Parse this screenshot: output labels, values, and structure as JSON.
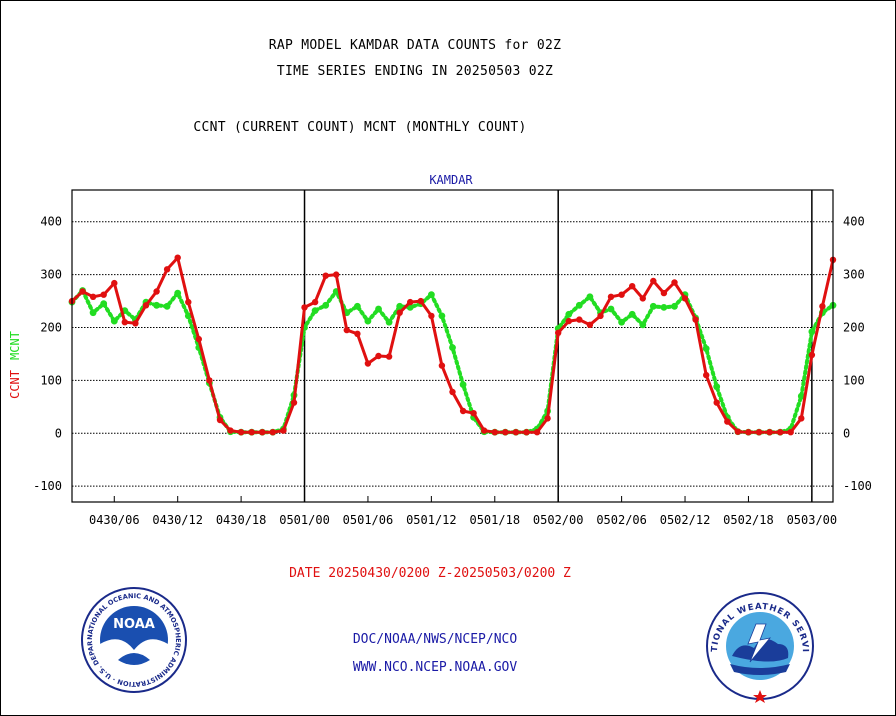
{
  "header": {
    "title_line1": "RAP MODEL KAMDAR DATA COUNTS for 02Z",
    "title_line2": "TIME SERIES ENDING IN 20250503 02Z",
    "subtitle": "CCNT (CURRENT COUNT) MCNT (MONTHLY COUNT)"
  },
  "footer": {
    "date_range": "DATE 20250430/0200 Z-20250503/0200 Z",
    "org_path": "DOC/NOAA/NWS/NCEP/NCO",
    "url": "WWW.NCO.NCEP.NOAA.GOV"
  },
  "logos": {
    "noaa_text": "NOAA",
    "noaa_ring": "NATIONAL OCEANIC AND ATMOSPHERIC ADMINISTRATION · U.S. DEPARTMENT OF COMMERCE ·",
    "nws_ring": "NATIONAL WEATHER SERVICE"
  },
  "colors": {
    "ccnt": "#e01010",
    "mcnt": "#22dd22",
    "title": "#000000",
    "blue_text": "#1a1aa6"
  },
  "chart_data": {
    "type": "line",
    "title": "KAMDAR",
    "ylabel_left": [
      "CCNT",
      "MCNT"
    ],
    "ylim": [
      -130,
      460
    ],
    "yticks": [
      -100,
      0,
      100,
      200,
      300,
      400
    ],
    "xlim": [
      0,
      72
    ],
    "x_unit": "hours after 20250430/0200 Z",
    "xticks": [
      {
        "x": 4,
        "label": "0430/06"
      },
      {
        "x": 10,
        "label": "0430/12"
      },
      {
        "x": 16,
        "label": "0430/18"
      },
      {
        "x": 22,
        "label": "0501/00"
      },
      {
        "x": 28,
        "label": "0501/06"
      },
      {
        "x": 34,
        "label": "0501/12"
      },
      {
        "x": 40,
        "label": "0501/18"
      },
      {
        "x": 46,
        "label": "0502/00"
      },
      {
        "x": 52,
        "label": "0502/06"
      },
      {
        "x": 58,
        "label": "0502/12"
      },
      {
        "x": 64,
        "label": "0502/18"
      },
      {
        "x": 70,
        "label": "0503/00"
      }
    ],
    "day_boundaries": [
      22,
      46,
      70
    ],
    "grid": true,
    "series": [
      {
        "name": "CCNT",
        "color": "#e01010",
        "values": [
          250,
          268,
          258,
          262,
          284,
          210,
          208,
          242,
          268,
          310,
          332,
          248,
          178,
          100,
          25,
          5,
          2,
          2,
          2,
          2,
          5,
          58,
          238,
          248,
          298,
          300,
          195,
          188,
          132,
          146,
          145,
          228,
          248,
          250,
          222,
          128,
          78,
          42,
          38,
          5,
          2,
          2,
          2,
          2,
          2,
          28,
          190,
          212,
          215,
          205,
          222,
          258,
          262,
          278,
          255,
          288,
          265,
          285,
          255,
          215,
          110,
          58,
          22,
          3,
          2,
          2,
          2,
          2,
          2,
          28,
          148,
          240,
          328
        ]
      },
      {
        "name": "MCNT",
        "color": "#22dd22",
        "values": [
          248,
          270,
          228,
          245,
          212,
          232,
          215,
          248,
          242,
          240,
          265,
          222,
          162,
          95,
          30,
          3,
          2,
          2,
          2,
          2,
          8,
          72,
          200,
          232,
          242,
          268,
          228,
          240,
          212,
          235,
          210,
          240,
          238,
          245,
          262,
          222,
          162,
          92,
          30,
          3,
          2,
          2,
          2,
          2,
          8,
          42,
          198,
          225,
          242,
          258,
          228,
          235,
          210,
          225,
          205,
          240,
          238,
          240,
          262,
          218,
          160,
          88,
          30,
          3,
          2,
          2,
          2,
          2,
          8,
          70,
          192,
          228,
          242
        ]
      }
    ]
  }
}
